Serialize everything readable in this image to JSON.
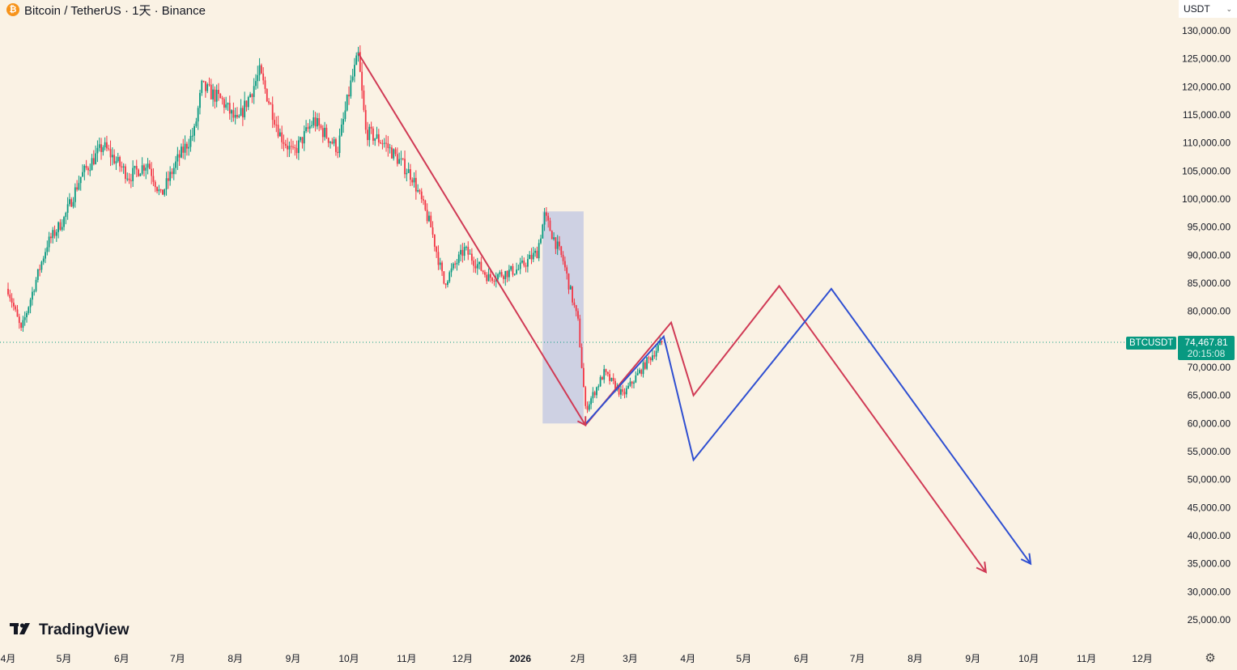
{
  "header": {
    "icon_letter": "₿",
    "title": "Bitcoin / TetherUS · 1天 · Binance"
  },
  "currency_select": {
    "value": "USDT"
  },
  "price_tag": {
    "symbol": "BTCUSDT",
    "price": "74,467.81",
    "countdown": "20:15:08",
    "color": "#089981"
  },
  "logo": {
    "text": "TradingView"
  },
  "chart_data": {
    "type": "line",
    "y_axis": {
      "ticks": [
        "130,000.00",
        "125,000.00",
        "120,000.00",
        "115,000.00",
        "110,000.00",
        "105,000.00",
        "100,000.00",
        "95,000.00",
        "90,000.00",
        "85,000.00",
        "80,000.00",
        "75,000.00",
        "70,000.00",
        "65,000.00",
        "60,000.00",
        "55,000.00",
        "50,000.00",
        "45,000.00",
        "40,000.00",
        "35,000.00",
        "30,000.00",
        "25,000.00"
      ],
      "range": [
        22500,
        132000
      ]
    },
    "x_axis": {
      "ticks": [
        "4月",
        "5月",
        "6月",
        "7月",
        "8月",
        "9月",
        "10月",
        "11月",
        "12月",
        "2026",
        "2月",
        "3月",
        "4月",
        "5月",
        "6月",
        "7月",
        "8月",
        "9月",
        "10月",
        "11月",
        "12月"
      ],
      "bold_tick": "2026"
    },
    "candles_close_path": [
      [
        "2025-04-01",
        84000
      ],
      [
        "2025-04-08",
        76500
      ],
      [
        "2025-04-15",
        84500
      ],
      [
        "2025-04-22",
        92000
      ],
      [
        "2025-05-01",
        96500
      ],
      [
        "2025-05-10",
        104000
      ],
      [
        "2025-05-22",
        109500
      ],
      [
        "2025-06-05",
        104000
      ],
      [
        "2025-06-15",
        106500
      ],
      [
        "2025-06-22",
        100500
      ],
      [
        "2025-07-01",
        107000
      ],
      [
        "2025-07-10",
        112000
      ],
      [
        "2025-07-14",
        120000
      ],
      [
        "2025-07-25",
        117500
      ],
      [
        "2025-08-02",
        113500
      ],
      [
        "2025-08-14",
        122500
      ],
      [
        "2025-08-25",
        111500
      ],
      [
        "2025-09-01",
        108000
      ],
      [
        "2025-09-12",
        114000
      ],
      [
        "2025-09-25",
        109000
      ],
      [
        "2025-10-02",
        120500
      ],
      [
        "2025-10-06",
        125500
      ],
      [
        "2025-10-10",
        112000
      ],
      [
        "2025-10-20",
        110000
      ],
      [
        "2025-11-04",
        104000
      ],
      [
        "2025-11-14",
        95000
      ],
      [
        "2025-11-21",
        85000
      ],
      [
        "2025-12-02",
        91000
      ],
      [
        "2025-12-15",
        86000
      ],
      [
        "2025-12-31",
        87500
      ],
      [
        "2026-01-10",
        90500
      ],
      [
        "2026-01-14",
        97000
      ],
      [
        "2026-01-24",
        89000
      ],
      [
        "2026-02-01",
        78000
      ],
      [
        "2026-02-05",
        62500
      ],
      [
        "2026-02-15",
        69000
      ],
      [
        "2026-02-25",
        65000
      ],
      [
        "2026-03-10",
        71000
      ],
      [
        "2026-03-18",
        74467.81
      ]
    ],
    "current_price": 74467.81,
    "highlight_box": {
      "x": [
        "2026-01-13",
        "2026-02-04"
      ],
      "y": [
        60000,
        97800
      ],
      "color": "#c5cbe3"
    },
    "series": [
      {
        "color": "#d03a55",
        "values": [
          [
            "2025-10-06",
            126000
          ],
          [
            "2026-02-05",
            59700
          ],
          [
            "2026-03-23",
            78000
          ],
          [
            "2026-04-04",
            65000
          ],
          [
            "2026-05-20",
            84500
          ],
          [
            "2026-09-08",
            33500
          ]
        ],
        "arrow_end": true
      },
      {
        "color": "#2f4fd1",
        "values": [
          [
            "2026-02-05",
            59900
          ],
          [
            "2026-03-19",
            75500
          ],
          [
            "2026-04-04",
            53500
          ],
          [
            "2026-06-17",
            84000
          ],
          [
            "2026-10-02",
            35000
          ]
        ],
        "arrow_end": true
      }
    ],
    "up_color": "#089981",
    "down_color": "#f23645"
  }
}
